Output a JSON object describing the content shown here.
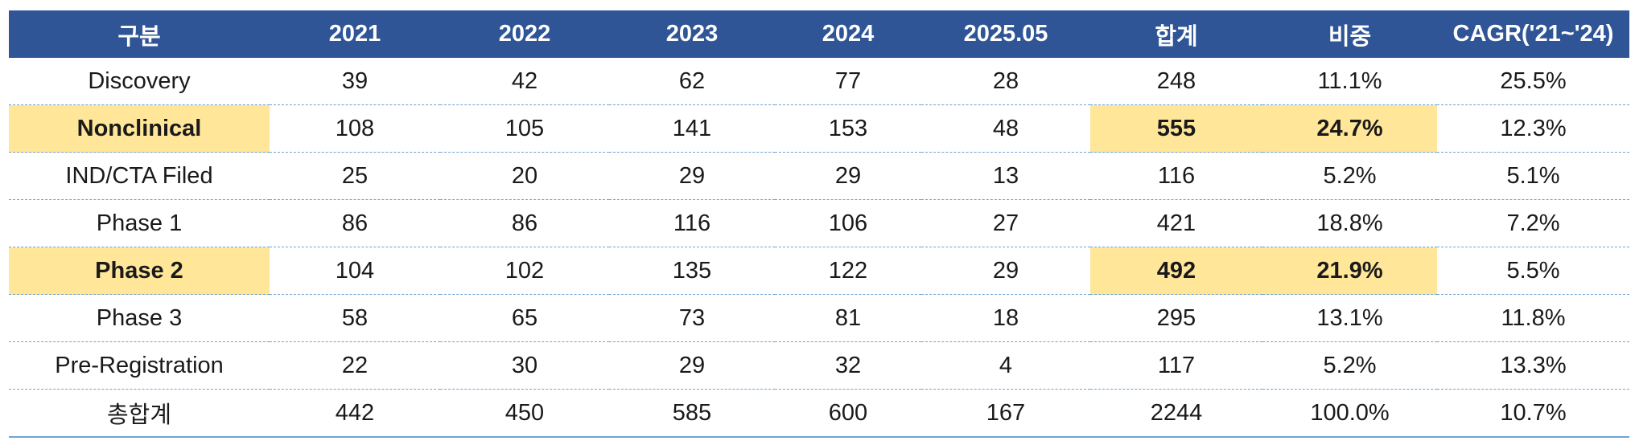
{
  "colors": {
    "header_bg": "#2f5597",
    "header_text": "#ffffff",
    "highlight": "#ffe699",
    "row_divider": "#6fa3d2"
  },
  "headers": [
    "구분",
    "2021",
    "2022",
    "2023",
    "2024",
    "2025.05",
    "합계",
    "비중",
    "CAGR('21~'24)"
  ],
  "rows": [
    {
      "cells": [
        "Discovery",
        "39",
        "42",
        "62",
        "77",
        "28",
        "248",
        "11.1%",
        "25.5%"
      ],
      "highlight": []
    },
    {
      "cells": [
        "Nonclinical",
        "108",
        "105",
        "141",
        "153",
        "48",
        "555",
        "24.7%",
        "12.3%"
      ],
      "highlight": [
        0,
        6,
        7
      ]
    },
    {
      "cells": [
        "IND/CTA Filed",
        "25",
        "20",
        "29",
        "29",
        "13",
        "116",
        "5.2%",
        "5.1%"
      ],
      "highlight": []
    },
    {
      "cells": [
        "Phase 1",
        "86",
        "86",
        "116",
        "106",
        "27",
        "421",
        "18.8%",
        "7.2%"
      ],
      "highlight": []
    },
    {
      "cells": [
        "Phase 2",
        "104",
        "102",
        "135",
        "122",
        "29",
        "492",
        "21.9%",
        "5.5%"
      ],
      "highlight": [
        0,
        6,
        7
      ]
    },
    {
      "cells": [
        "Phase 3",
        "58",
        "65",
        "73",
        "81",
        "18",
        "295",
        "13.1%",
        "11.8%"
      ],
      "highlight": []
    },
    {
      "cells": [
        "Pre-Registration",
        "22",
        "30",
        "29",
        "32",
        "4",
        "117",
        "5.2%",
        "13.3%"
      ],
      "highlight": []
    },
    {
      "cells": [
        "총합계",
        "442",
        "450",
        "585",
        "600",
        "167",
        "2244",
        "100.0%",
        "10.7%"
      ],
      "highlight": []
    }
  ]
}
